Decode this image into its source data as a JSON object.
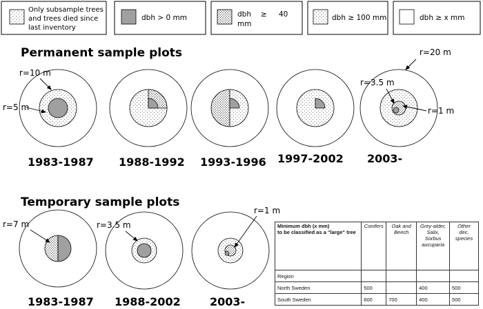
{
  "legend": [
    {
      "label": "Only subsample trees and trees died since last inventory",
      "lines": [
        "Only subsample trees",
        "and trees died since",
        "last inventory"
      ]
    },
    {
      "label": "dbh > 0 mm"
    },
    {
      "label": "dbh ≥ 40 mm",
      "lines": [
        "dbh",
        "≥",
        "40",
        "mm"
      ]
    },
    {
      "label": "dbh ≥ 100 mm"
    },
    {
      "label": "dbh ≥ x mm"
    }
  ],
  "permanent": {
    "title": "Permanent sample plots",
    "labels": {
      "r10": "r=10 m",
      "r5": "r=5 m",
      "r35": "r=3.5 m",
      "r1": "r=1 m",
      "r20": "r=20 m"
    },
    "years": [
      "1983-1987",
      "1988-1992",
      "1993-1996",
      "1997-2002",
      "2003-"
    ]
  },
  "temporary": {
    "title": "Temporary sample plots",
    "labels": {
      "r7": "r=7 m",
      "r35": "r=3.5 m",
      "r1": "r=1 m"
    },
    "years": [
      "1983-1987",
      "1988-2002",
      "2003-"
    ]
  },
  "table": {
    "header": "Minimum dbh (x mm) to be classified as a \"large\" tree",
    "header_lines": [
      "Minimum dbh (x mm)",
      "to be classified as a \"large\" tree"
    ],
    "columns": [
      "Conifers",
      "Oak and Beech",
      "Grey-alder, Salix, Sorbus aucuparia",
      "Other dec. species"
    ],
    "region_label": "Region",
    "rows": [
      {
        "region": "North Sweden",
        "values": [
          "500",
          "",
          "400",
          "500"
        ]
      },
      {
        "region": "South Sweden",
        "values": [
          "600",
          "700",
          "400",
          "500"
        ]
      }
    ]
  }
}
